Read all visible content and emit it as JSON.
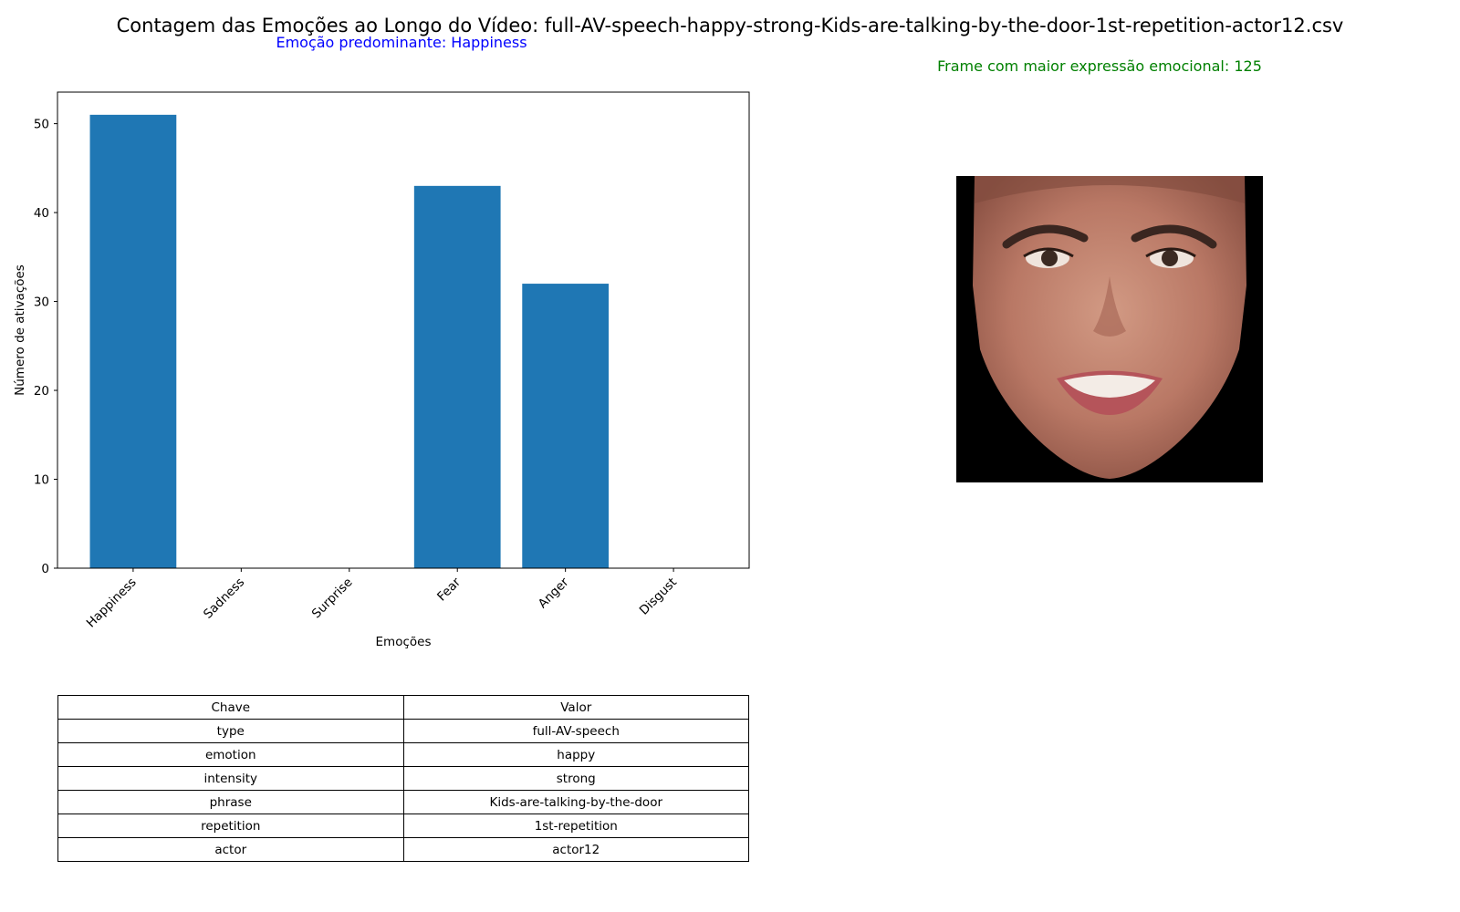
{
  "figure": {
    "title": "Contagem das Emoções ao Longo do Vídeo: full-AV-speech-happy-strong-Kids-are-talking-by-the-door-1st-repetition-actor12.csv",
    "predominant_text": "Emoção predominante: Happiness",
    "frame_text": "Frame com maior expressão emocional: 125",
    "colors": {
      "bar": "#1f77b4",
      "predominant": "#0000ff",
      "frame": "#008000"
    },
    "image_subject": "smiling-face-icon"
  },
  "chart_data": {
    "type": "bar",
    "categories": [
      "Happiness",
      "Sadness",
      "Surprise",
      "Fear",
      "Anger",
      "Disgust"
    ],
    "values": [
      51,
      0,
      0,
      43,
      32,
      0
    ],
    "xlabel": "Emoções",
    "ylabel": "Número de ativações",
    "ylim": [
      0,
      53.55
    ],
    "yticks": [
      0,
      10,
      20,
      30,
      40,
      50
    ],
    "grid": false,
    "legend": "none"
  },
  "table": {
    "header": [
      "Chave",
      "Valor"
    ],
    "rows": [
      [
        "type",
        "full-AV-speech"
      ],
      [
        "emotion",
        "happy"
      ],
      [
        "intensity",
        "strong"
      ],
      [
        "phrase",
        "Kids-are-talking-by-the-door"
      ],
      [
        "repetition",
        "1st-repetition"
      ],
      [
        "actor",
        "actor12"
      ]
    ]
  }
}
